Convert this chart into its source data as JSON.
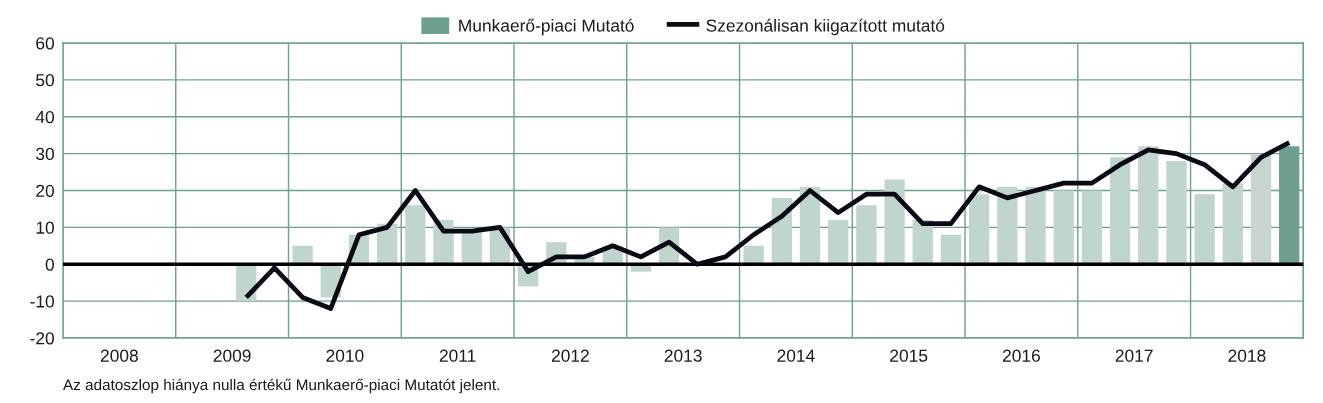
{
  "chart_data": {
    "type": "bar",
    "x": [
      2009.625,
      2009.875,
      2010.125,
      2010.375,
      2010.625,
      2010.875,
      2011.125,
      2011.375,
      2011.625,
      2011.875,
      2012.125,
      2012.375,
      2012.625,
      2012.875,
      2013.125,
      2013.375,
      2013.625,
      2013.875,
      2014.125,
      2014.375,
      2014.625,
      2014.875,
      2015.125,
      2015.375,
      2015.625,
      2015.875,
      2016.125,
      2016.375,
      2016.625,
      2016.875,
      2017.125,
      2017.375,
      2017.625,
      2017.875,
      2018.125,
      2018.375,
      2018.625,
      2018.875
    ],
    "series": [
      {
        "name": "Munkaerő-piaci Mutató",
        "color": "#6e9f91",
        "colors": [
          "#bfd5cd",
          "#bfd5cd",
          "#bfd5cd",
          "#bfd5cd",
          "#bfd5cd",
          "#bfd5cd",
          "#bfd5cd",
          "#bfd5cd",
          "#bfd5cd",
          "#bfd5cd",
          "#bfd5cd",
          "#bfd5cd",
          "#bfd5cd",
          "#bfd5cd",
          "#bfd5cd",
          "#bfd5cd",
          "#bfd5cd",
          "#bfd5cd",
          "#bfd5cd",
          "#bfd5cd",
          "#bfd5cd",
          "#bfd5cd",
          "#bfd5cd",
          "#bfd5cd",
          "#bfd5cd",
          "#bfd5cd",
          "#bfd5cd",
          "#bfd5cd",
          "#bfd5cd",
          "#bfd5cd",
          "#bfd5cd",
          "#bfd5cd",
          "#bfd5cd",
          "#bfd5cd",
          "#bfd5cd",
          "#bfd5cd",
          "#c6d5cf",
          "#6e9f91"
        ],
        "values": [
          -10,
          0,
          5,
          -9,
          8,
          11,
          16,
          12,
          9,
          10,
          -6,
          6,
          2,
          5,
          -2,
          10,
          0,
          0,
          5,
          18,
          21,
          12,
          16,
          23,
          12,
          8,
          19,
          21,
          21,
          20,
          20,
          29,
          32,
          28,
          19,
          22,
          30,
          32
        ]
      },
      {
        "name": "Szezonálisan kiigazított mutató",
        "type": "line",
        "color": "#0a0a14",
        "values": [
          -9,
          -1,
          -9,
          -12,
          8,
          10,
          20,
          9,
          9,
          10,
          -2,
          2,
          2,
          5,
          2,
          6,
          0,
          2,
          8,
          13,
          20,
          14,
          19,
          19,
          11,
          11,
          21,
          18,
          20,
          22,
          22,
          27,
          31,
          30,
          27,
          21,
          29,
          33
        ]
      }
    ],
    "xlim": [
      2008,
      2019
    ],
    "xticks": [
      {
        "value": 2008,
        "label": null
      },
      {
        "value": 2008.5,
        "label": "2008"
      },
      {
        "value": 2009,
        "label": null
      },
      {
        "value": 2009.5,
        "label": "2009"
      },
      {
        "value": 2010,
        "label": null
      },
      {
        "value": 2010.5,
        "label": "2010"
      },
      {
        "value": 2011,
        "label": null
      },
      {
        "value": 2011.5,
        "label": "2011"
      },
      {
        "value": 2012,
        "label": null
      },
      {
        "value": 2012.5,
        "label": "2012"
      },
      {
        "value": 2013,
        "label": null
      },
      {
        "value": 2013.5,
        "label": "2013"
      },
      {
        "value": 2014,
        "label": null
      },
      {
        "value": 2014.5,
        "label": "2014"
      },
      {
        "value": 2015,
        "label": null
      },
      {
        "value": 2015.5,
        "label": "2015"
      },
      {
        "value": 2016,
        "label": null
      },
      {
        "value": 2016.5,
        "label": "2016"
      },
      {
        "value": 2017,
        "label": null
      },
      {
        "value": 2017.5,
        "label": "2017"
      },
      {
        "value": 2018,
        "label": null
      },
      {
        "value": 2018.5,
        "label": "2018"
      },
      {
        "value": 2019,
        "label": null
      }
    ],
    "ylim": [
      -20,
      60
    ],
    "yticks": [
      -20,
      -10,
      0,
      10,
      20,
      30,
      40,
      50,
      60
    ],
    "grid": true,
    "legend": "top",
    "ref_lines": [
      {
        "axis": "y",
        "value": 0,
        "color": "#000000"
      }
    ],
    "annotations": [
      "Az adatoszlop hiánya nulla értékű Munkaerő-piaci Mutatót jelent."
    ]
  }
}
